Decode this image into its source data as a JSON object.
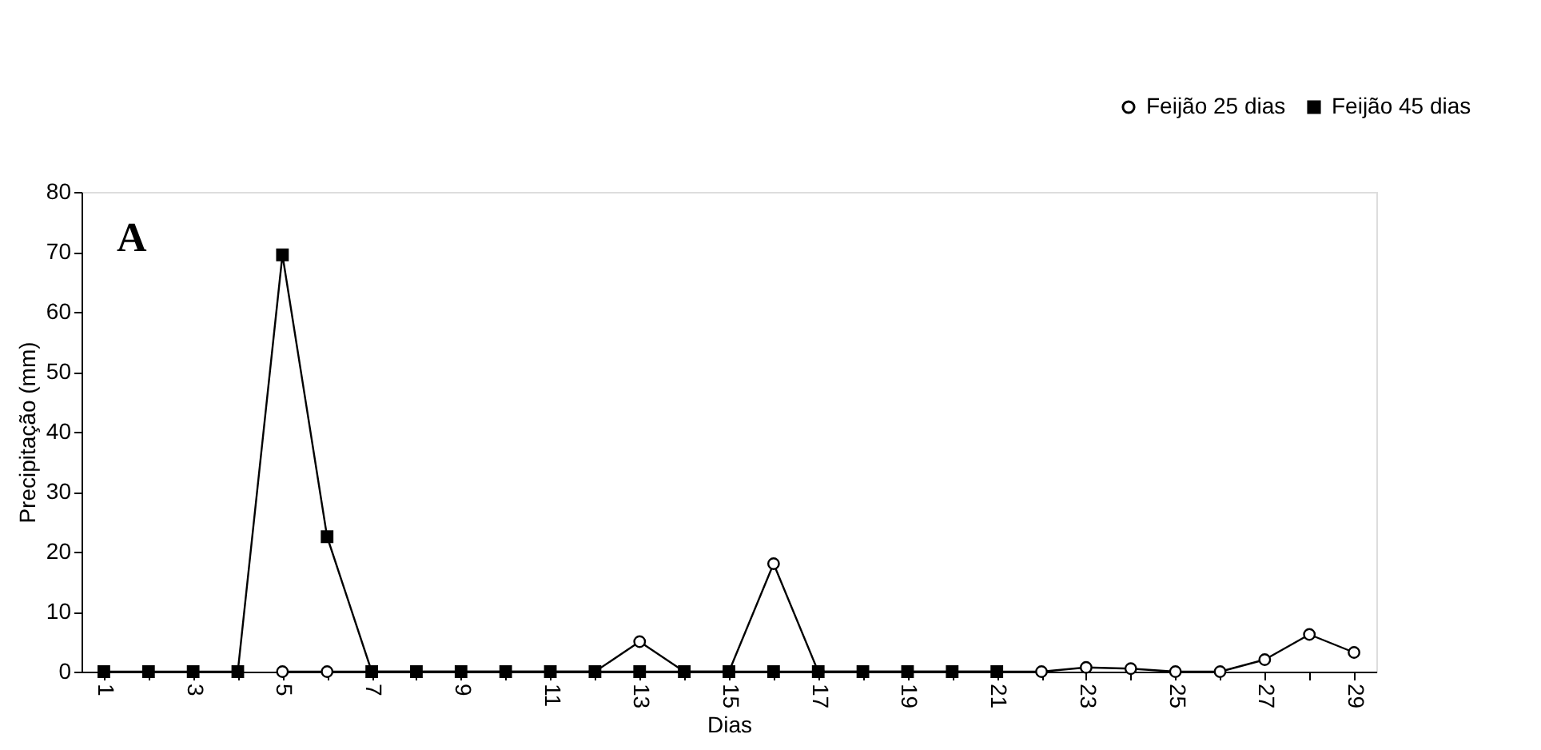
{
  "chart_data": {
    "type": "line",
    "annotations": [
      "A"
    ],
    "xlabel": "Dias",
    "ylabel": "Precipitação (mm)",
    "categories": [
      "1",
      null,
      "3",
      null,
      "5",
      null,
      "7",
      null,
      "9",
      null,
      "11",
      null,
      "13",
      null,
      "15",
      null,
      "17",
      null,
      "19",
      null,
      "21",
      null,
      "23",
      null,
      "25",
      null,
      "27",
      null,
      "29"
    ],
    "series": [
      {
        "name": "Feijão 25 dias",
        "color": "#000000",
        "marker": "circle",
        "values": [
          null,
          null,
          null,
          null,
          0,
          0,
          null,
          null,
          null,
          null,
          null,
          0,
          5,
          0,
          0,
          18,
          0,
          null,
          null,
          null,
          null,
          0,
          0.7,
          0.5,
          0,
          0,
          2,
          6.2,
          3.2
        ]
      },
      {
        "name": "Feijão 45 dias",
        "color": "#000000",
        "marker": "square",
        "values": [
          0,
          0,
          0,
          0,
          69.5,
          22.5,
          0,
          0,
          0,
          0,
          0,
          0,
          0,
          0,
          0,
          0,
          0,
          0,
          0,
          0,
          0,
          null,
          null,
          null,
          null,
          null,
          null,
          null,
          null
        ]
      }
    ],
    "ylim": [
      0,
      80
    ],
    "yticks": [
      0,
      10,
      20,
      30,
      40,
      50,
      60,
      70,
      80
    ],
    "grid": false,
    "legend": "top right"
  }
}
